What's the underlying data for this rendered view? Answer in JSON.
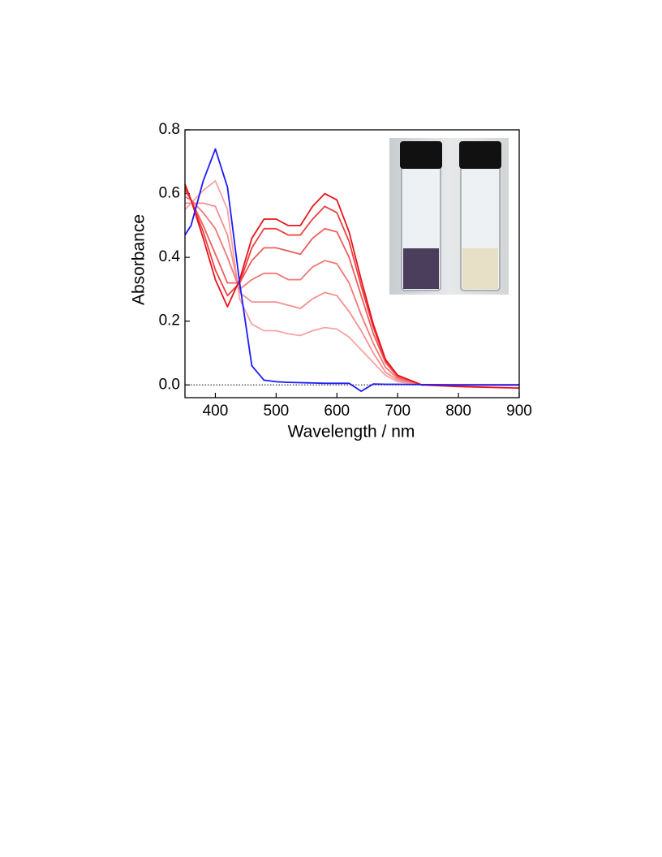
{
  "chart_data": {
    "type": "line",
    "x_label": "Wavelength  / nm",
    "y_label": "Absorbance",
    "x": [
      350,
      360,
      380,
      400,
      420,
      440,
      460,
      480,
      500,
      520,
      540,
      560,
      580,
      600,
      620,
      640,
      660,
      680,
      700,
      740,
      800,
      900
    ],
    "xlim": [
      350,
      900
    ],
    "xticks": [
      400,
      500,
      600,
      700,
      800,
      900
    ],
    "ylim": [
      -0.04,
      0.8
    ],
    "yticks": [
      {
        "value": 0,
        "label": "0.0"
      },
      {
        "value": 0.2,
        "label": "0.2"
      },
      {
        "value": 0.4,
        "label": "0.4"
      },
      {
        "value": 0.6,
        "label": "0.6"
      },
      {
        "value": 0.8,
        "label": "0.8"
      }
    ],
    "series": [
      {
        "color": "#f7a3a3",
        "values": [
          0.55,
          0.57,
          0.61,
          0.64,
          0.55,
          0.27,
          0.19,
          0.17,
          0.17,
          0.16,
          0.155,
          0.17,
          0.18,
          0.175,
          0.15,
          0.11,
          0.07,
          0.03,
          0.01,
          0,
          0,
          0
        ]
      },
      {
        "color": "#f59090",
        "values": [
          0.57,
          0.57,
          0.57,
          0.56,
          0.47,
          0.29,
          0.26,
          0.26,
          0.26,
          0.25,
          0.24,
          0.27,
          0.29,
          0.28,
          0.23,
          0.17,
          0.1,
          0.04,
          0.015,
          0,
          0,
          0
        ]
      },
      {
        "color": "#f27878",
        "values": [
          0.59,
          0.58,
          0.54,
          0.49,
          0.4,
          0.3,
          0.33,
          0.35,
          0.35,
          0.33,
          0.33,
          0.37,
          0.39,
          0.38,
          0.32,
          0.22,
          0.13,
          0.055,
          0.02,
          0,
          0,
          0
        ]
      },
      {
        "color": "#ef5c5c",
        "values": [
          0.61,
          0.58,
          0.5,
          0.41,
          0.32,
          0.32,
          0.39,
          0.43,
          0.43,
          0.42,
          0.41,
          0.46,
          0.49,
          0.48,
          0.4,
          0.28,
          0.16,
          0.07,
          0.025,
          0,
          0,
          0
        ]
      },
      {
        "color": "#ec4040",
        "values": [
          0.62,
          0.58,
          0.48,
          0.36,
          0.28,
          0.32,
          0.43,
          0.49,
          0.49,
          0.47,
          0.47,
          0.52,
          0.56,
          0.54,
          0.45,
          0.31,
          0.18,
          0.075,
          0.03,
          0,
          0,
          0
        ]
      },
      {
        "color": "#e8141c",
        "values": [
          0.63,
          0.58,
          0.46,
          0.33,
          0.245,
          0.33,
          0.46,
          0.52,
          0.52,
          0.5,
          0.5,
          0.56,
          0.6,
          0.58,
          0.48,
          0.33,
          0.19,
          0.08,
          0.03,
          0,
          -0.005,
          -0.01
        ]
      },
      {
        "color": "#1a1aff",
        "values": [
          0.47,
          0.5,
          0.64,
          0.74,
          0.62,
          0.32,
          0.06,
          0.015,
          0.01,
          0.008,
          0.007,
          0.006,
          0.005,
          0.005,
          0.005,
          -0.02,
          0.003,
          0.002,
          0.002,
          0.001,
          0,
          0
        ]
      }
    ]
  }
}
